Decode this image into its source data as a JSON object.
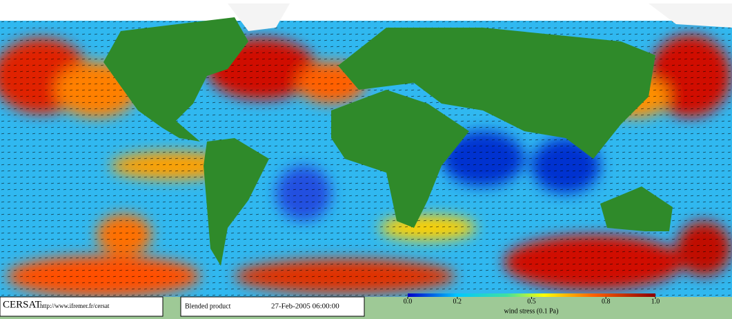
{
  "header": {
    "logo": "CERSAT",
    "url": "http://www.ifremer.fr/cersat",
    "product": "Blended product",
    "date": "27-Feb-2005 06:00:00"
  },
  "colorbar": {
    "label": "wind stress (0.1 Pa)",
    "ticks": [
      {
        "value": 0,
        "label": "0.0"
      },
      0.2,
      0.5,
      0.8,
      {
        "value": 1,
        "label": "1.0"
      }
    ]
  }
}
